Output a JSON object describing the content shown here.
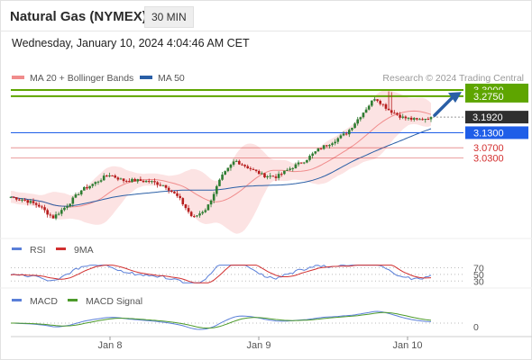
{
  "header": {
    "instrument": "Natural Gas (NYMEX)",
    "timeframe": "30 MIN",
    "timestamp": "Wednesday, January 10, 2024 4:04:46 AM CET"
  },
  "colors": {
    "ma20": "#f08c8c",
    "bollinger_fill": "#fbdada",
    "ma50": "#2a5fa6",
    "bullish_candle": "#2e7d32",
    "bearish_candle": "#b71c1c",
    "green_level": "#5ea500",
    "blue_level": "#1f5ee8",
    "red_level": "#d32f2f",
    "current_price": "#2f2f2f",
    "rsi": "#5a7fd8",
    "rsi_9ma": "#d12f2f",
    "macd": "#5a7fd8",
    "macd_signal": "#4c9a2a"
  },
  "chart_data": [
    {
      "type": "candlestick",
      "title": "",
      "source": "Research © 2024 Trading Central",
      "legend": [
        {
          "name": "MA 20 + Bollinger Bands",
          "color": "#f08c8c"
        },
        {
          "name": "MA 50",
          "color": "#2a5fa6"
        }
      ],
      "legend_position": "top-left",
      "x_tick_labels": [
        "Jan 8",
        "Jan 9",
        "Jan 10"
      ],
      "price_levels": [
        {
          "label": "3.3000",
          "value": 3.3,
          "color": "#5ea500",
          "style": "solid"
        },
        {
          "label": "3.2750",
          "value": 3.275,
          "color": "#5ea500",
          "style": "solid"
        },
        {
          "label": "3.1920",
          "value": 3.192,
          "color": "#2f2f2f",
          "style": "current"
        },
        {
          "label": "3.1300",
          "value": 3.13,
          "color": "#1f5ee8",
          "style": "solid"
        },
        {
          "label": "3.0700",
          "value": 3.07,
          "color": "#d32f2f",
          "style": "solid"
        },
        {
          "label": "3.0300",
          "value": 3.03,
          "color": "#d32f2f",
          "style": "solid"
        }
      ],
      "forecast": "up toward 3.3000",
      "approx_close_path": [
        2.875,
        2.862,
        2.84,
        2.792,
        2.84,
        2.9,
        2.93,
        2.965,
        2.94,
        2.94,
        2.935,
        2.92,
        2.87,
        2.79,
        2.83,
        2.95,
        3.02,
        2.99,
        2.96,
        2.955,
        2.99,
        3.02,
        3.065,
        3.095,
        3.13,
        3.2,
        3.27,
        3.22,
        3.19,
        3.18,
        3.192
      ]
    },
    {
      "type": "line",
      "title": "RSI",
      "series": [
        {
          "name": "RSI",
          "color": "#5a7fd8"
        },
        {
          "name": "9MA",
          "color": "#d12f2f"
        }
      ],
      "y_ticks": [
        70,
        50,
        30
      ]
    },
    {
      "type": "line",
      "title": "MACD",
      "series": [
        {
          "name": "MACD",
          "color": "#5a7fd8"
        },
        {
          "name": "MACD Signal",
          "color": "#4c9a2a"
        }
      ],
      "y_ticks": [
        0
      ]
    }
  ]
}
